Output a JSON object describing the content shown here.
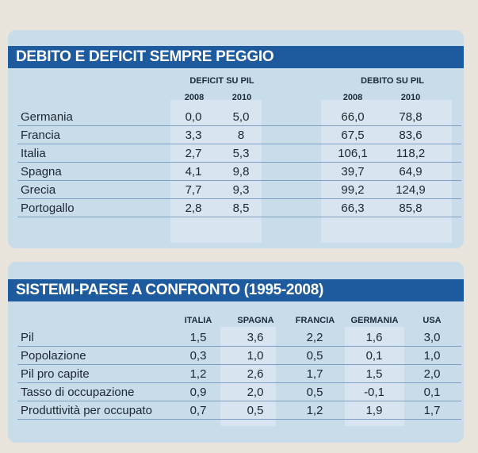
{
  "debito": {
    "title": "DEBITO E DEFICIT SEMPRE PEGGIO",
    "group_deficit": "DEFICIT SU PIL",
    "group_debito": "DEBITO SU PIL",
    "years": [
      "2008",
      "2010",
      "2008",
      "2010"
    ],
    "rows": [
      {
        "country": "Germania",
        "values": [
          "0,0",
          "5,0",
          "66,0",
          "78,8"
        ]
      },
      {
        "country": "Francia",
        "values": [
          "3,3",
          "8",
          "67,5",
          "83,6"
        ]
      },
      {
        "country": "Italia",
        "values": [
          "2,7",
          "5,3",
          "106,1",
          "118,2"
        ]
      },
      {
        "country": "Spagna",
        "values": [
          "4,1",
          "9,8",
          "39,7",
          "64,9"
        ]
      },
      {
        "country": "Grecia",
        "values": [
          "7,7",
          "9,3",
          "99,2",
          "124,9"
        ]
      },
      {
        "country": "Portogallo",
        "values": [
          "2,8",
          "8,5",
          "66,3",
          "85,8"
        ]
      }
    ]
  },
  "sistemi": {
    "title": "SISTEMI-PAESE A CONFRONTO (1995-2008)",
    "columns": [
      "ITALIA",
      "SPAGNA",
      "FRANCIA",
      "GERMANIA",
      "USA"
    ],
    "rows": [
      {
        "label": "Pil",
        "values": [
          "1,5",
          "3,6",
          "2,2",
          "1,6",
          "3,0"
        ]
      },
      {
        "label": "Popolazione",
        "values": [
          "0,3",
          "1,0",
          "0,5",
          "0,1",
          "1,0"
        ]
      },
      {
        "label": "Pil pro capite",
        "values": [
          "1,2",
          "2,6",
          "1,7",
          "1,5",
          "2,0"
        ]
      },
      {
        "label": "Tasso di occupazione",
        "values": [
          "0,9",
          "2,0",
          "0,5",
          "-0,1",
          "0,1"
        ]
      },
      {
        "label": "Produttività per occupato",
        "values": [
          "0,7",
          "0,5",
          "1,2",
          "1,9",
          "1,7"
        ]
      }
    ]
  },
  "colors": {
    "header_band": "#1d5b9e",
    "panel": "#c9dcea",
    "rule": "#7da0c2"
  }
}
